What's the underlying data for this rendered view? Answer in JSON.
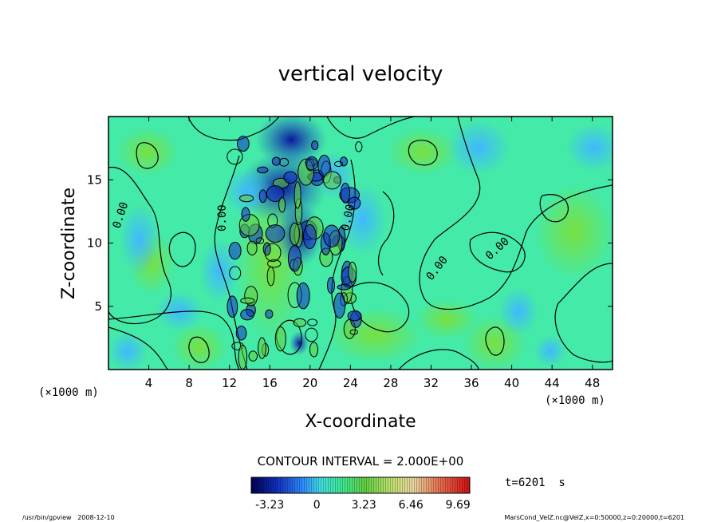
{
  "chart_data": {
    "type": "heatmap",
    "title": "vertical velocity",
    "xlabel": "X-coordinate",
    "ylabel": "Z-coordinate",
    "x_unit": "(×1000 m)",
    "y_unit": "(×1000 m)",
    "xlim": [
      0,
      50
    ],
    "ylim": [
      0,
      20
    ],
    "x_ticks": [
      "4",
      "8",
      "12",
      "16",
      "20",
      "24",
      "28",
      "32",
      "36",
      "40",
      "44",
      "48"
    ],
    "x_tick_values": [
      4,
      8,
      12,
      16,
      20,
      24,
      28,
      32,
      36,
      40,
      44,
      48
    ],
    "y_ticks": [
      "5",
      "10",
      "15"
    ],
    "y_tick_values": [
      5,
      10,
      15
    ],
    "contour_interval_text": "CONTOUR INTERVAL = 2.000E+00",
    "contour_labels": [
      "0.00",
      "0.00",
      "0.00",
      "0.00",
      "0.00"
    ],
    "colorbar": {
      "ticks": [
        "-3.23",
        "0",
        "3.23",
        "6.46",
        "9.69"
      ],
      "tick_values": [
        -3.23,
        0,
        3.23,
        6.46,
        9.69
      ],
      "range": [
        -4.5,
        10.5
      ]
    },
    "time_label": "t=6201  s"
  },
  "footer": {
    "left": "/usr/bin/gpview   2008-12-10",
    "right": "MarsCond_VelZ.nc@VelZ,x=0:50000,z=0:20000,t=6201"
  },
  "colors": {
    "strong_down": "#000080",
    "down": "#1e6fff",
    "weak_down": "#40c8ff",
    "near_zero": "#40f0c8",
    "weak_up": "#70e040",
    "up": "#e8e060",
    "strong_up": "#e03020",
    "contour": "#000000"
  }
}
